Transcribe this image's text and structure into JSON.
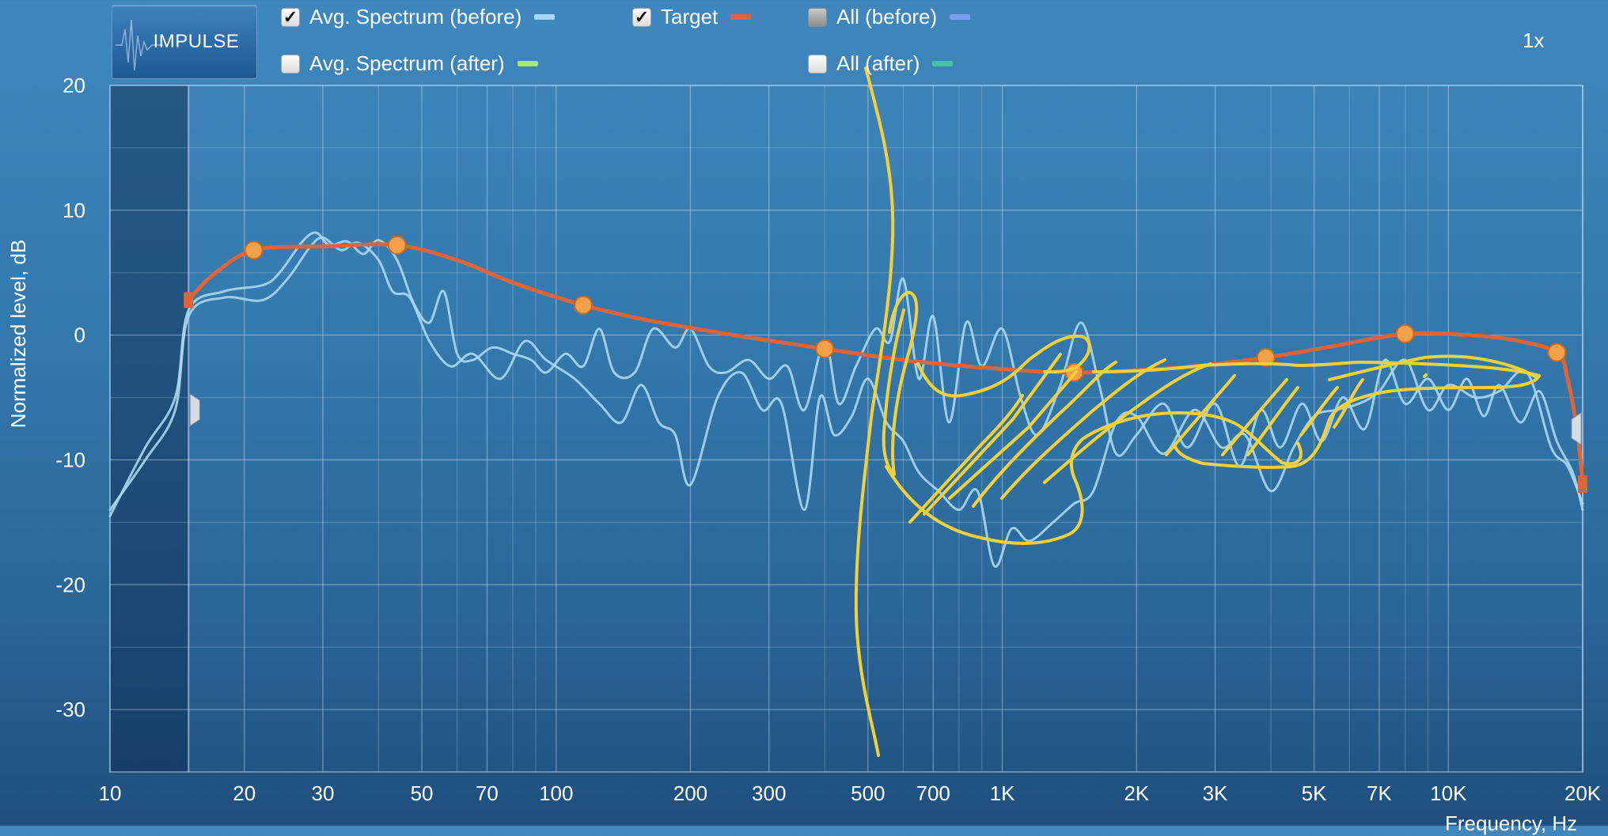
{
  "toolbar": {
    "impulse_button": "IMPULSE",
    "zoom": "1x"
  },
  "legend": [
    {
      "label": "Avg. Spectrum (before)",
      "checked": true,
      "color": "#a9d8f2"
    },
    {
      "label": "Target",
      "checked": true,
      "color": "#e0643a"
    },
    {
      "label": "All (before)",
      "checked": false,
      "color": "#7f9bf0"
    },
    {
      "label": "Avg. Spectrum (after)",
      "checked": false,
      "color": "#a4ee5a"
    },
    {
      "label": "All (after)",
      "checked": false,
      "color": "#46c39a"
    }
  ],
  "chart_data": {
    "type": "line",
    "xscale": "log",
    "xlim": [
      10,
      20000
    ],
    "ylim": [
      -35,
      20
    ],
    "ylabel": "Normalized level, dB",
    "xlabel": "Frequency, Hz",
    "grid": true,
    "xticks": [
      {
        "v": 10,
        "label": "10"
      },
      {
        "v": 20,
        "label": "20"
      },
      {
        "v": 30,
        "label": "30"
      },
      {
        "v": 50,
        "label": "50"
      },
      {
        "v": 70,
        "label": "70"
      },
      {
        "v": 100,
        "label": "100"
      },
      {
        "v": 200,
        "label": "200"
      },
      {
        "v": 300,
        "label": "300"
      },
      {
        "v": 500,
        "label": "500"
      },
      {
        "v": 700,
        "label": "700"
      },
      {
        "v": 1000,
        "label": "1K"
      },
      {
        "v": 2000,
        "label": "2K"
      },
      {
        "v": 3000,
        "label": "3K"
      },
      {
        "v": 5000,
        "label": "5K"
      },
      {
        "v": 7000,
        "label": "7K"
      },
      {
        "v": 10000,
        "label": "10K"
      },
      {
        "v": 20000,
        "label": "20K"
      }
    ],
    "yticks": [
      {
        "v": 20,
        "label": "20"
      },
      {
        "v": 10,
        "label": "10"
      },
      {
        "v": 0,
        "label": "0"
      },
      {
        "v": -10,
        "label": "-10"
      },
      {
        "v": -20,
        "label": "-20"
      },
      {
        "v": -30,
        "label": "-30"
      }
    ],
    "excluded_low_range_hz": [
      10,
      15
    ],
    "target_points": [
      [
        21,
        6.8
      ],
      [
        44,
        7.2
      ],
      [
        115,
        2.4
      ],
      [
        400,
        -1.1
      ],
      [
        1450,
        -3.0
      ],
      [
        3900,
        -1.8
      ],
      [
        8000,
        0.1
      ],
      [
        17500,
        -1.4
      ]
    ],
    "series": [
      {
        "name": "Target",
        "color": "#e0643a",
        "x": [
          15,
          17,
          21,
          30,
          44,
          60,
          80,
          115,
          160,
          250,
          400,
          600,
          900,
          1450,
          2500,
          3900,
          5500,
          8000,
          11000,
          14000,
          17500,
          18500,
          19500,
          20000
        ],
        "y": [
          2.8,
          4.8,
          6.8,
          7.1,
          7.2,
          6.0,
          4.2,
          2.4,
          1.2,
          0.0,
          -1.1,
          -2.0,
          -2.6,
          -3.0,
          -2.6,
          -1.8,
          -0.9,
          0.1,
          0.0,
          -0.4,
          -1.4,
          -3.5,
          -8.0,
          -12.0
        ]
      },
      {
        "name": "Avg. Spectrum (before)",
        "color": "#a9d8f2",
        "x": [
          10,
          12,
          14,
          15,
          18,
          22,
          24,
          27,
          29,
          31,
          34,
          37,
          40,
          44,
          48,
          52,
          56,
          60,
          65,
          72,
          80,
          88,
          95,
          105,
          115,
          125,
          135,
          150,
          165,
          185,
          200,
          220,
          240,
          270,
          300,
          330,
          360,
          400,
          430,
          470,
          520,
          560,
          600,
          650,
          700,
          760,
          830,
          900,
          1000,
          1100,
          1200,
          1350,
          1500,
          1650,
          1800,
          2000,
          2300,
          2600,
          3000,
          3400,
          3800,
          4200,
          4700,
          5200,
          5800,
          6500,
          7200,
          8000,
          9000,
          10000,
          11000,
          12000,
          13000,
          14500,
          16000,
          17500,
          19000,
          20000
        ],
        "y": [
          -14.5,
          -9.0,
          -5.0,
          2.0,
          3.5,
          4.0,
          5.0,
          7.5,
          8.2,
          7.2,
          7.5,
          6.5,
          7.6,
          6.0,
          2.5,
          1.0,
          3.5,
          -1.5,
          -2.0,
          -1.0,
          -1.5,
          -2.0,
          -3.0,
          -1.5,
          -2.5,
          0.5,
          -3.0,
          -3.0,
          0.5,
          -1.0,
          0.5,
          -2.5,
          -3.0,
          -2.0,
          -3.5,
          -2.5,
          -6.0,
          -0.5,
          -5.5,
          -2.5,
          0.5,
          -0.5,
          4.5,
          -3.5,
          1.5,
          -7.0,
          1.0,
          -2.5,
          0.5,
          -5.0,
          -8.0,
          -4.0,
          1.0,
          -4.0,
          -9.5,
          -8.0,
          -5.5,
          -9.0,
          -5.5,
          -10.5,
          -6.0,
          -9.0,
          -5.5,
          -8.5,
          -5.0,
          -7.5,
          -2.0,
          -5.5,
          -3.5,
          -6.0,
          -3.5,
          -6.5,
          -4.0,
          -7.0,
          -4.5,
          -8.5,
          -11.0,
          -14.0
        ]
      },
      {
        "name": "Avg. Spectrum (before) 2",
        "color": "#a9d8f2",
        "x": [
          10,
          12,
          14,
          15,
          18,
          22,
          25,
          28,
          30,
          33,
          36,
          40,
          43,
          47,
          52,
          58,
          65,
          75,
          85,
          95,
          110,
          125,
          140,
          155,
          170,
          185,
          200,
          230,
          260,
          290,
          320,
          360,
          390,
          420,
          460,
          500,
          550,
          600,
          650,
          720,
          800,
          880,
          960,
          1050,
          1150,
          1300,
          1450,
          1600,
          1800,
          2000,
          2300,
          2700,
          3100,
          3500,
          4000,
          4500,
          5000,
          5600,
          6300,
          7000,
          8000,
          9000,
          10000,
          11500,
          13000,
          15000,
          17000,
          18500,
          20000
        ],
        "y": [
          -14.0,
          -10.0,
          -6.0,
          1.5,
          3.0,
          2.8,
          4.5,
          7.0,
          7.8,
          6.8,
          7.4,
          6.0,
          3.5,
          3.0,
          -0.5,
          -2.5,
          -1.5,
          -3.5,
          -0.5,
          -2.0,
          -3.5,
          -5.5,
          -7.0,
          -4.0,
          -7.0,
          -8.0,
          -12.0,
          -5.0,
          -3.0,
          -6.0,
          -5.5,
          -14.0,
          -5.0,
          -8.0,
          -6.5,
          -3.5,
          -7.0,
          -8.5,
          -11.0,
          -12.5,
          -14.0,
          -12.5,
          -18.5,
          -15.5,
          -16.5,
          -15.0,
          -13.5,
          -12.5,
          -7.0,
          -6.5,
          -9.5,
          -6.0,
          -9.0,
          -8.0,
          -12.5,
          -9.0,
          -6.5,
          -6.0,
          -5.5,
          -4.5,
          -2.0,
          -6.0,
          -4.0,
          -5.0,
          -4.5,
          -3.0,
          -9.0,
          -10.5,
          -13.5
        ]
      }
    ],
    "annotation": {
      "description": "yellow hand-drawn scribble",
      "color": "#f2d03a"
    }
  },
  "handles": {
    "low_cut": "15",
    "high_cut": "20000"
  }
}
